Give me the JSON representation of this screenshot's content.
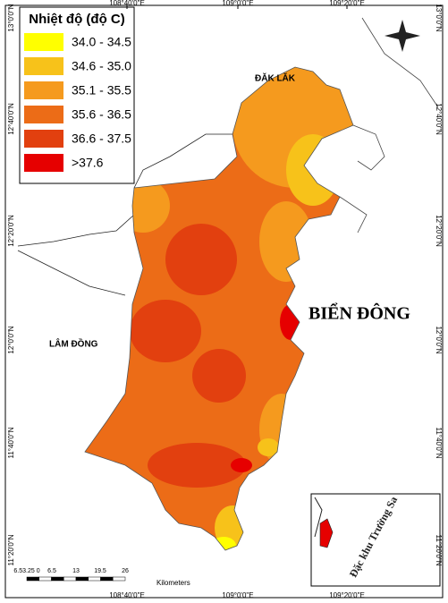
{
  "legend": {
    "title": "Nhiệt độ (độ C)",
    "items": [
      {
        "label": "34.0 - 34.5",
        "color": "#ffff00"
      },
      {
        "label": "34.6 - 35.0",
        "color": "#f7c21a"
      },
      {
        "label": "35.1 - 35.5",
        "color": "#f59a1e"
      },
      {
        "label": "35.6 - 36.5",
        "color": "#ec6c17"
      },
      {
        "label": "36.6 - 37.5",
        "color": "#e2400f"
      },
      {
        "label": ">37.6",
        "color": "#e60000"
      }
    ]
  },
  "labels": {
    "dak_lak": "ĐĂK LĂK",
    "bien_dong": "BIỂN ĐÔNG",
    "lam_dong": "LÂM ĐỒNG",
    "inset": "Đặc khu Trường Sa"
  },
  "graticule": {
    "longitudes": [
      "108°40'0\"E",
      "109°0'0\"E",
      "109°20'0\"E"
    ],
    "latitudes": [
      "13°0'0\"N",
      "12°40'0\"N",
      "12°20'0\"N",
      "12°0'0\"N",
      "11°40'0\"N",
      "11°20'0\"N"
    ]
  },
  "scale": {
    "labels": [
      "6.53.25 0",
      "6.5",
      "13",
      "19.5",
      "26"
    ],
    "unit": "Kilometers"
  }
}
